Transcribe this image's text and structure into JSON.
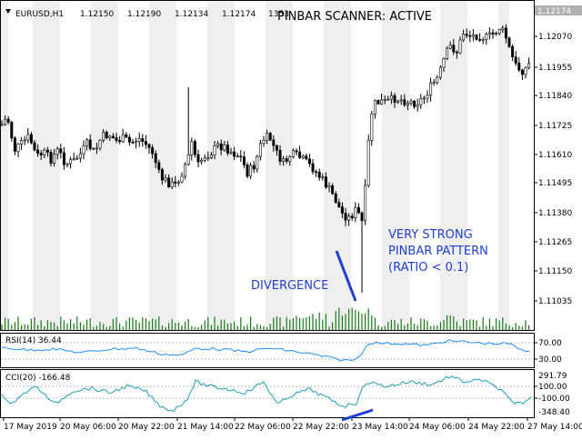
{
  "symbol_header": {
    "symbol": "EURUSD,H1",
    "open": "1.12150",
    "high": "1.12190",
    "low": "1.12134",
    "close": "1.12174",
    "volume": "1353"
  },
  "scanner_status": "PINBAR SCANNER: ACTIVE",
  "current_price_label": "1.12174",
  "price_axis_labels": [
    "1.12070",
    "1.11955",
    "1.11840",
    "1.11725",
    "1.11610",
    "1.11495",
    "1.11380",
    "1.11265",
    "1.11150",
    "1.11035"
  ],
  "annotations": {
    "divergence": "DIVERGENCE",
    "pinbar_line1": "VERY STRONG",
    "pinbar_line2": "PINBAR PATTERN",
    "pinbar_line3": "(RATIO < 0.1)"
  },
  "rsi_panel": {
    "title": "RSI(14) 36.44",
    "levels": [
      "70.00",
      "30.00"
    ]
  },
  "cci_panel": {
    "title": "CCI(20) -166.48",
    "levels": [
      "291.79",
      "100.00",
      "-100.00",
      "-348.40"
    ]
  },
  "time_axis_labels": [
    "17 May 2019",
    "20 May 06:00",
    "20 May 22:00",
    "21 May 14:00",
    "22 May 06:00",
    "22 May 22:00",
    "23 May 14:00",
    "24 May 06:00",
    "24 May 22:00",
    "27 May 14:00"
  ],
  "colors": {
    "bull_candle": "#ffffff",
    "bear_candle": "#000000",
    "volume": "#1a7a1a",
    "rsi_line": "#1e90ff",
    "cci_line": "#20a0b0",
    "annotation": "#1f3fd1",
    "session_band": "#efefef"
  }
}
